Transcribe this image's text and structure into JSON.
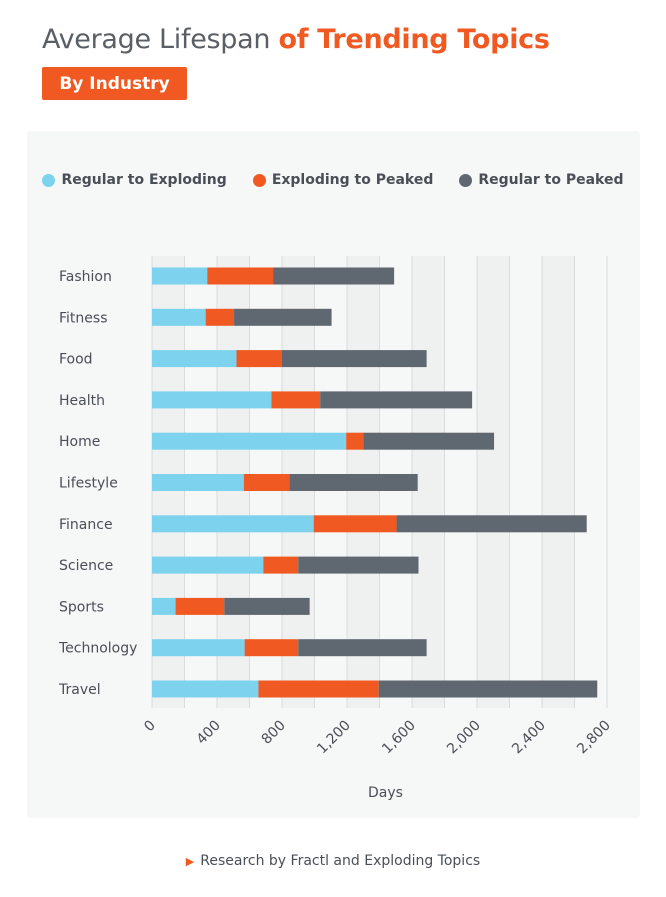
{
  "header": {
    "title_plain": "Average Lifespan ",
    "title_accent": "of Trending Topics",
    "badge": "By Industry"
  },
  "footer": {
    "credit": "Research by Fractl and Exploding Topics"
  },
  "chart_data": {
    "type": "bar",
    "orientation": "horizontal",
    "stacked": true,
    "categories": [
      "Fashion",
      "Fitness",
      "Food",
      "Health",
      "Home",
      "Lifestyle",
      "Finance",
      "Science",
      "Sports",
      "Technology",
      "Travel"
    ],
    "series": [
      {
        "name": "Regular to Exploding",
        "color": "#7dd3ee",
        "values": [
          340,
          330,
          520,
          735,
          1195,
          565,
          995,
          685,
          145,
          570,
          655
        ]
      },
      {
        "name": "Exploding to Peaked",
        "color": "#f05a22",
        "values": [
          405,
          175,
          280,
          300,
          105,
          280,
          510,
          215,
          300,
          330,
          740
        ]
      },
      {
        "name": "Regular to Peaked",
        "color": "#5f6770",
        "values": [
          745,
          600,
          890,
          935,
          805,
          790,
          1170,
          740,
          525,
          790,
          1345
        ]
      }
    ],
    "xlabel": "Days",
    "ylabel": "",
    "xlim": [
      0,
      2800
    ],
    "xticks": [
      "0",
      "400",
      "800",
      "1,200",
      "1,600",
      "2,000",
      "2,400",
      "2,800"
    ],
    "grid": true,
    "legend": "top"
  }
}
